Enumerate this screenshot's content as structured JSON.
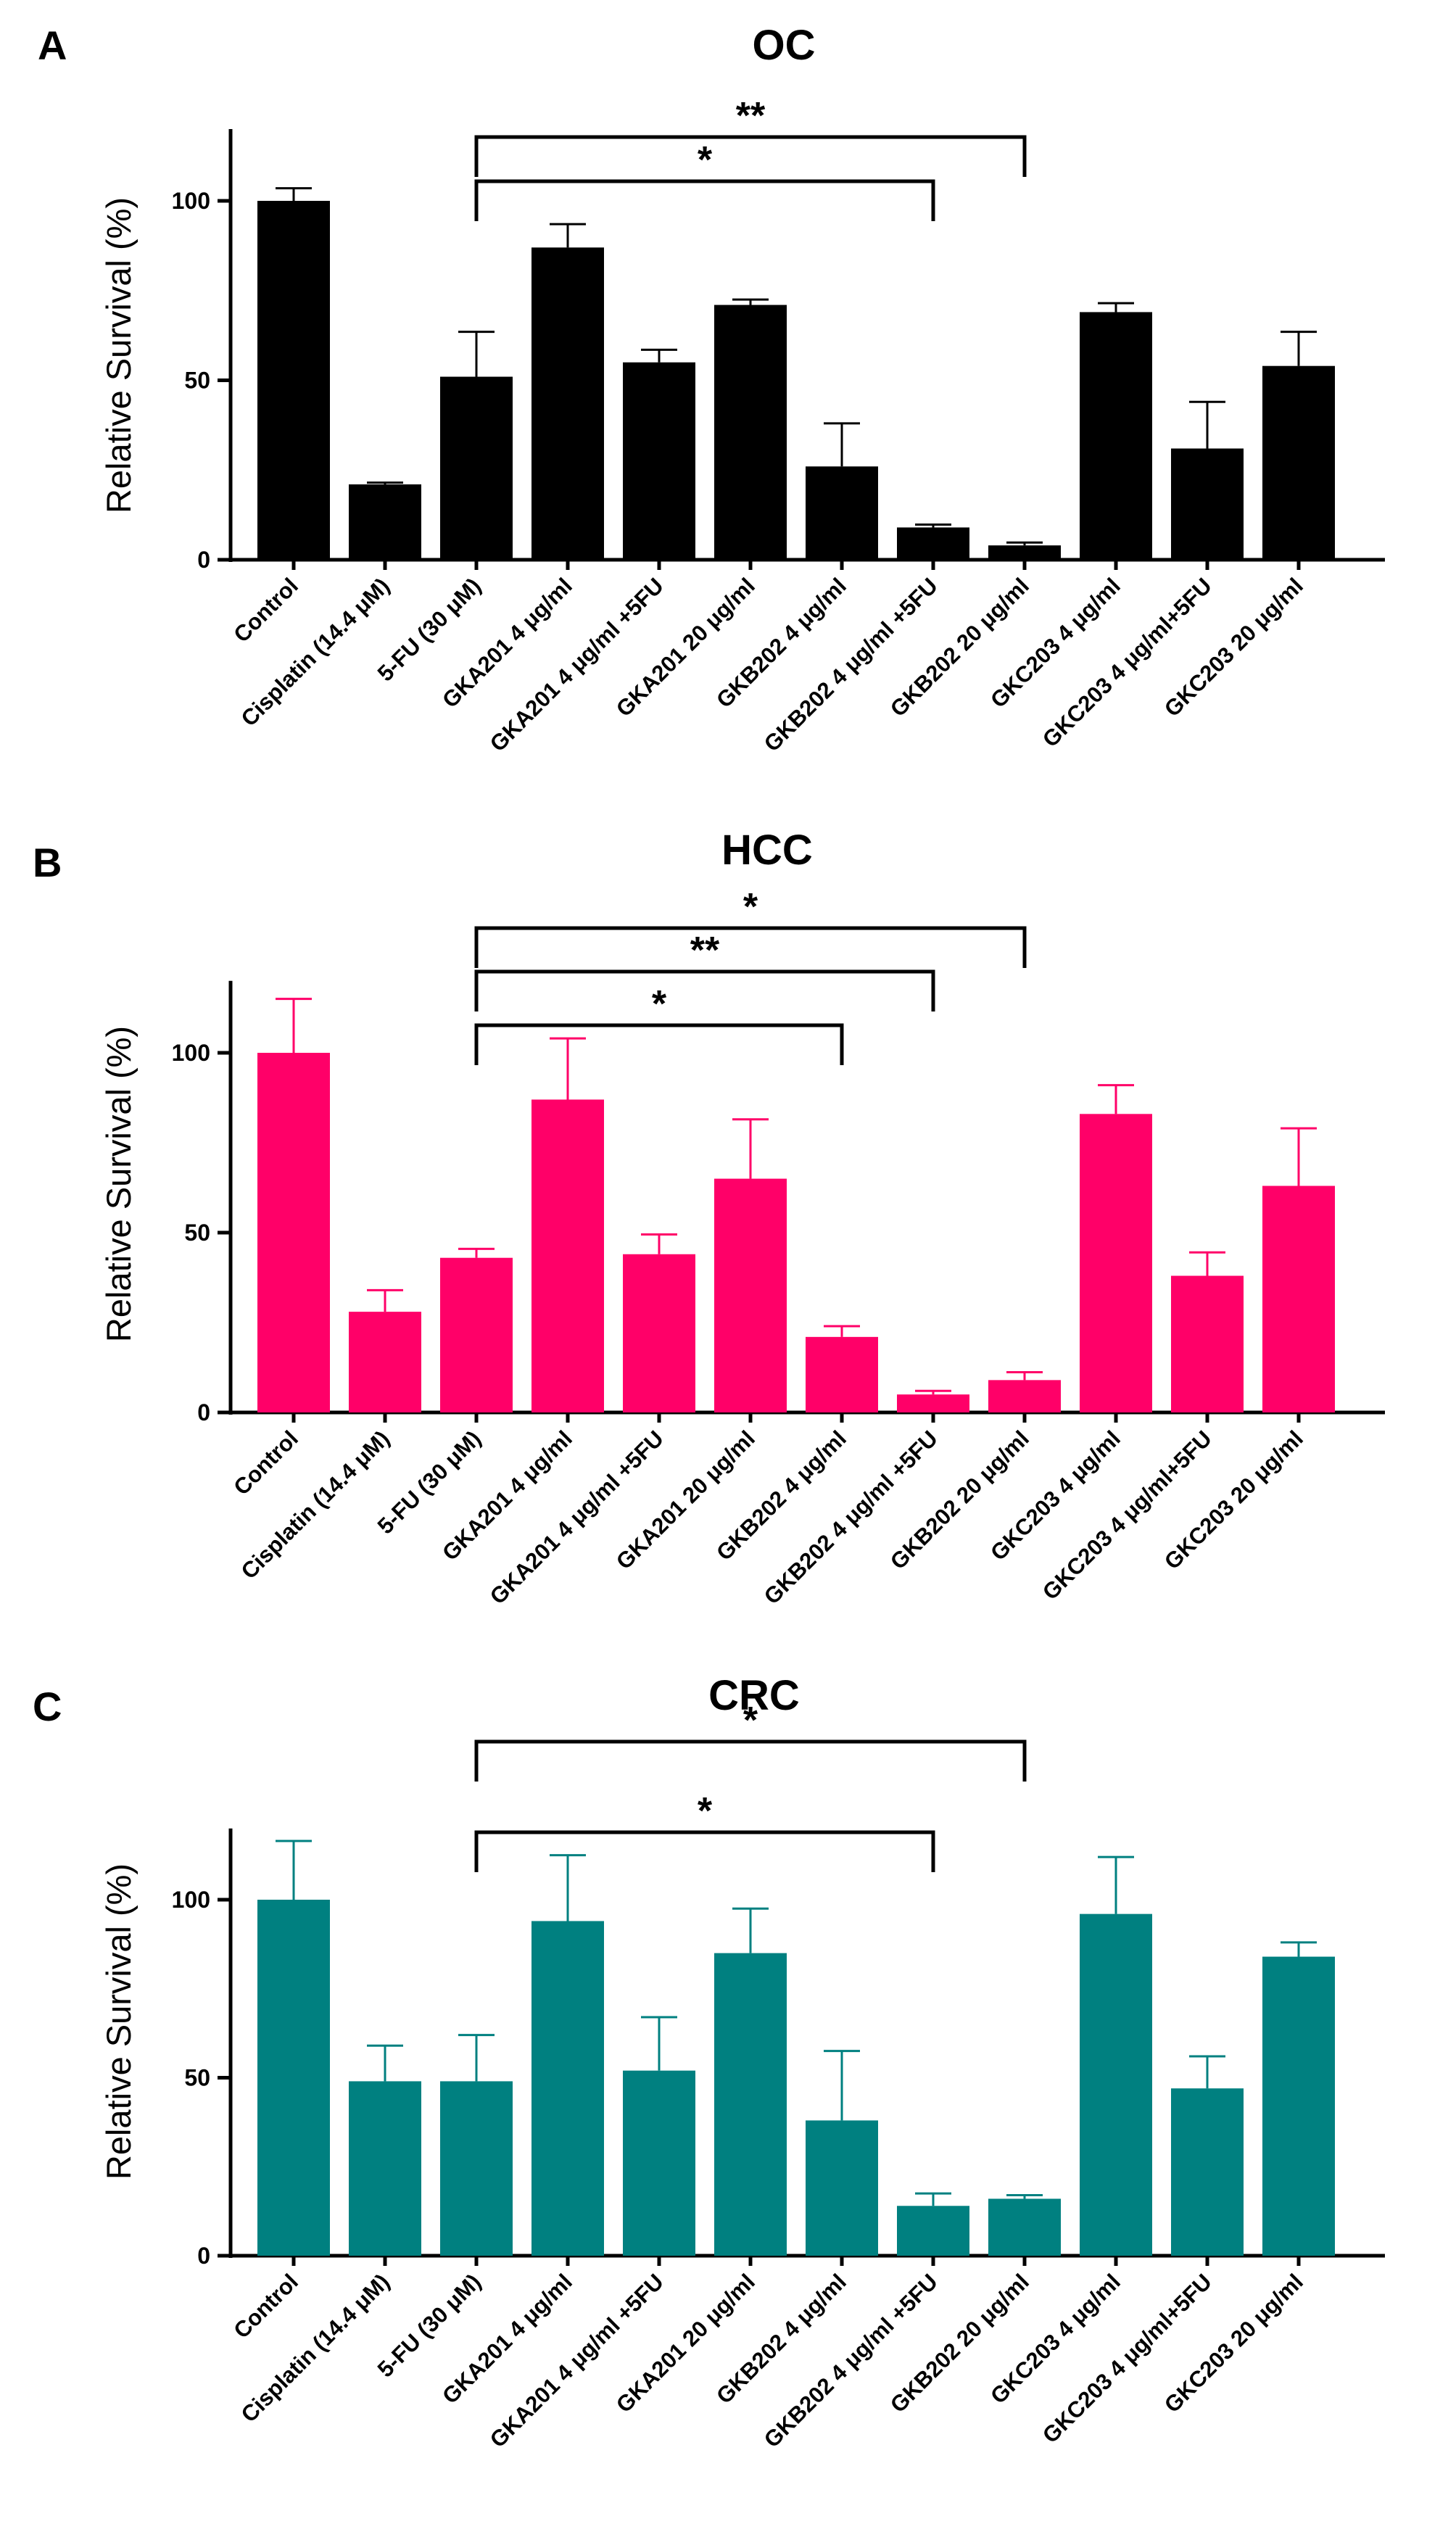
{
  "categories": [
    "Control",
    "Cisplatin (14.4 μM)",
    "5-FU (30 μM)",
    "GKA201 4 μg/ml",
    "GKA201 4 μg/ml +5FU",
    "GKA201 20 μg/ml",
    "GKB202 4 μg/ml",
    "GKB202 4 μg/ml +5FU",
    "GKB202 20 μg/ml",
    "GKC203 4 μg/ml",
    "GKC203 4 μg/ml+5FU",
    "GKC203 20 μg/ml"
  ],
  "chart_data": [
    {
      "type": "bar",
      "panel": "A",
      "title": "OC",
      "xlabel": "",
      "ylabel": "Relative Survival (%)",
      "ylim": [
        0,
        120
      ],
      "yticks": [
        0,
        50,
        100
      ],
      "color": "#000000",
      "values": [
        100,
        21,
        51,
        87,
        55,
        71,
        26,
        9,
        4,
        69,
        31,
        54
      ],
      "errors": [
        3.5,
        0.5,
        12.5,
        6.5,
        3.5,
        1.5,
        12,
        0.8,
        0.8,
        2.5,
        13,
        9.5
      ],
      "significance": [
        {
          "from": 2,
          "to": 7,
          "label": "*"
        },
        {
          "from": 2,
          "to": 8,
          "label": "**"
        }
      ]
    },
    {
      "type": "bar",
      "panel": "B",
      "title": "HCC",
      "xlabel": "",
      "ylabel": "Relative Survival (%)",
      "ylim": [
        0,
        120
      ],
      "yticks": [
        0,
        50,
        100
      ],
      "color": "#ff0068",
      "values": [
        100,
        28,
        43,
        87,
        44,
        65,
        21,
        5,
        9,
        83,
        38,
        63
      ],
      "errors": [
        15,
        6,
        2.5,
        17,
        5.5,
        16.5,
        3,
        1,
        2.2,
        8,
        6.5,
        16
      ],
      "significance": [
        {
          "from": 2,
          "to": 6,
          "label": "*"
        },
        {
          "from": 2,
          "to": 7,
          "label": "**"
        },
        {
          "from": 2,
          "to": 8,
          "label": "*"
        }
      ]
    },
    {
      "type": "bar",
      "panel": "C",
      "title": "CRC",
      "xlabel": "",
      "ylabel": "Relative Survival (%)",
      "ylim": [
        0,
        120
      ],
      "yticks": [
        0,
        50,
        100
      ],
      "color": "#008080",
      "values": [
        100,
        49,
        49,
        94,
        52,
        85,
        38,
        14,
        16,
        96,
        47,
        84
      ],
      "errors": [
        16.5,
        10,
        13,
        18.5,
        15,
        12.5,
        19.5,
        3.5,
        1,
        16,
        9,
        4
      ],
      "significance": [
        {
          "from": 2,
          "to": 7,
          "label": "*"
        },
        {
          "from": 2,
          "to": 8,
          "label": "*"
        }
      ]
    }
  ]
}
